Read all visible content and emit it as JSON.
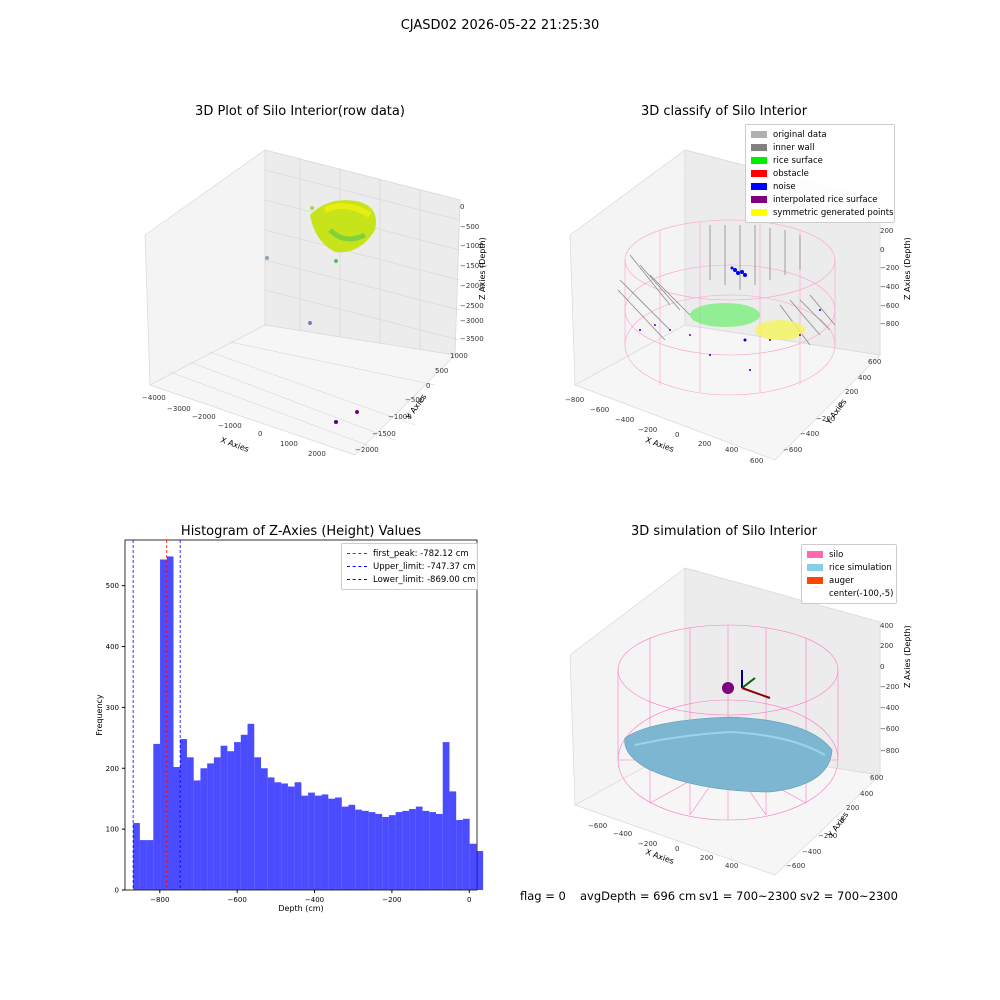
{
  "suptitle": "CJASD02 2026-05-22 21:25:30",
  "panel1": {
    "title": "3D Plot of Silo Interior(row data)",
    "xlabel": "X Axies",
    "ylabel": "Y Axies",
    "zlabel": "Z Axies (Depth)",
    "xticks": [
      "−4000",
      "−3000",
      "−2000",
      "−1000",
      "0",
      "1000",
      "2000"
    ],
    "yticks": [
      "1000",
      "500",
      "0",
      "−500",
      "−1000",
      "−1500",
      "−2000"
    ],
    "zticks": [
      "0",
      "−500",
      "−1000",
      "−1500",
      "−2000",
      "−2500",
      "−3000",
      "−3500"
    ]
  },
  "panel2": {
    "title": "3D classify of Silo Interior",
    "xlabel": "X Axies",
    "ylabel": "Y Axies",
    "zlabel": "Z Axies (Depth)",
    "xticks": [
      "−800",
      "−600",
      "−400",
      "−200",
      "0",
      "200",
      "400",
      "600"
    ],
    "yticks": [
      "600",
      "400",
      "200",
      "0",
      "−200",
      "−400",
      "−600"
    ],
    "zticks": [
      "200",
      "0",
      "−200",
      "−400",
      "−600",
      "−800"
    ],
    "legend": [
      {
        "label": "original data",
        "color": "#b0b0b0"
      },
      {
        "label": "inner wall",
        "color": "#808080"
      },
      {
        "label": "rice surface",
        "color": "#00ee00"
      },
      {
        "label": "obstacle",
        "color": "#ff0000"
      },
      {
        "label": "noise",
        "color": "#0000ff"
      },
      {
        "label": "interpolated rice surface",
        "color": "#800080"
      },
      {
        "label": "symmetric generated points",
        "color": "#ffff00"
      }
    ]
  },
  "panel4": {
    "title": "3D simulation of Silo Interior",
    "xlabel": "X Axies",
    "ylabel": "Y Axies",
    "zlabel": "Z Axies (Depth)",
    "xticks": [
      "−600",
      "−400",
      "−200",
      "0",
      "200",
      "400"
    ],
    "yticks": [
      "600",
      "400",
      "200",
      "0",
      "−200",
      "−400",
      "−600"
    ],
    "zticks": [
      "400",
      "200",
      "0",
      "−200",
      "−400",
      "−600",
      "−800"
    ],
    "legend": [
      {
        "label": "silo",
        "color": "#ff69b4"
      },
      {
        "label": "rice simulation",
        "color": "#87ceeb"
      },
      {
        "label": "auger",
        "color": "#ff4500"
      },
      {
        "label": "center(-100,-5)",
        "color": "transparent"
      }
    ]
  },
  "footer": {
    "flag": "flag = 0",
    "avg": "avgDepth = 696 cm",
    "sv1": "sv1 = 700~2300",
    "sv2": "sv2 = 700~2300"
  },
  "chart_data": [
    {
      "type": "bar",
      "title": "Histogram of Z-Axies (Height) Values",
      "xlabel": "Depth (cm)",
      "ylabel": "Frequency",
      "xlim": [
        -890,
        20
      ],
      "ylim": [
        0,
        575
      ],
      "bin_start": -869,
      "bin_width": 17.4,
      "values": [
        110,
        82,
        82,
        240,
        543,
        548,
        202,
        248,
        218,
        180,
        200,
        208,
        218,
        237,
        228,
        243,
        255,
        273,
        218,
        200,
        185,
        177,
        175,
        170,
        177,
        155,
        160,
        155,
        157,
        150,
        152,
        137,
        140,
        132,
        130,
        128,
        125,
        120,
        123,
        128,
        130,
        133,
        137,
        130,
        128,
        125,
        243,
        162,
        115,
        117,
        76,
        64
      ],
      "xticks": [
        -800,
        -600,
        -400,
        -200,
        0
      ],
      "yticks": [
        0,
        100,
        200,
        300,
        400,
        500
      ],
      "color": "#0000ff",
      "vlines": [
        {
          "x": -782.12,
          "color": "#ff0000",
          "label": "first_peak: -782.12 cm"
        },
        {
          "x": -747.37,
          "color": "#0000ff",
          "label": "Upper_limit: -747.37 cm"
        },
        {
          "x": -869.0,
          "color": "#0000ff",
          "label": "Lower_limit: -869.00 cm"
        }
      ],
      "legend_position": "top-right"
    }
  ]
}
